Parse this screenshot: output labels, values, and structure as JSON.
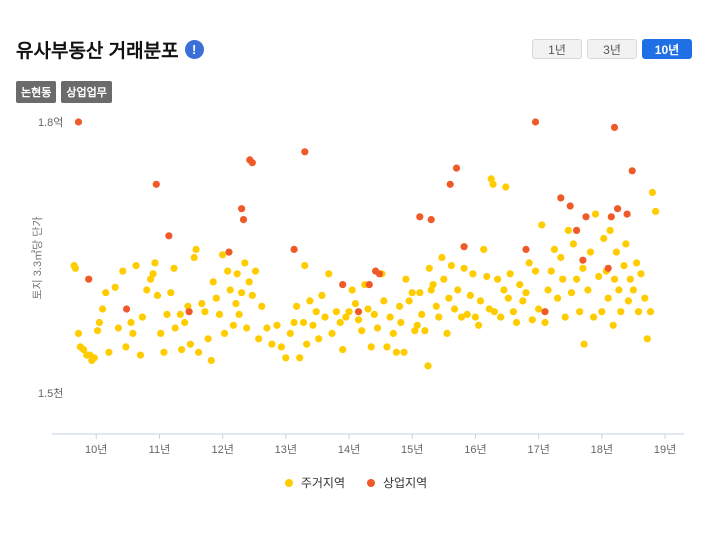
{
  "header": {
    "title": "유사부동산 거래분포",
    "info_glyph": "!",
    "range_buttons": [
      "1년",
      "3년",
      "10년"
    ],
    "active_range": "10년"
  },
  "tags": [
    "논현동",
    "상업업무"
  ],
  "colors": {
    "residential": "#ffcc00",
    "commercial": "#f05a28",
    "active": "#1f6fe5"
  },
  "chart_data": {
    "type": "scatter",
    "title": "",
    "xlabel": "",
    "ylabel": "토지 3.3㎡당 단가",
    "x_ticks": [
      10,
      11,
      12,
      13,
      14,
      15,
      16,
      17,
      18,
      19
    ],
    "x_tick_labels": [
      "10년",
      "11년",
      "12년",
      "13년",
      "14년",
      "15년",
      "16년",
      "17년",
      "18년",
      "19년"
    ],
    "xlim": [
      9.3,
      19.3
    ],
    "y_tick_labels": [
      "1.8억",
      "1.5천"
    ],
    "grid": false,
    "legend_position": "bottom",
    "series": [
      {
        "name": "주거지역",
        "color": "#ffcc00",
        "points": [
          [
            9.65,
            0.47
          ],
          [
            9.67,
            0.46
          ],
          [
            9.72,
            0.22
          ],
          [
            9.75,
            0.17
          ],
          [
            9.8,
            0.16
          ],
          [
            9.85,
            0.14
          ],
          [
            9.9,
            0.14
          ],
          [
            9.93,
            0.12
          ],
          [
            9.97,
            0.13
          ],
          [
            10.02,
            0.23
          ],
          [
            10.05,
            0.26
          ],
          [
            10.1,
            0.31
          ],
          [
            10.15,
            0.37
          ],
          [
            10.2,
            0.15
          ],
          [
            10.3,
            0.39
          ],
          [
            10.35,
            0.24
          ],
          [
            10.42,
            0.45
          ],
          [
            10.47,
            0.17
          ],
          [
            10.55,
            0.26
          ],
          [
            10.58,
            0.22
          ],
          [
            10.63,
            0.47
          ],
          [
            10.7,
            0.14
          ],
          [
            10.73,
            0.28
          ],
          [
            10.8,
            0.38
          ],
          [
            10.86,
            0.42
          ],
          [
            10.9,
            0.44
          ],
          [
            10.93,
            0.48
          ],
          [
            10.97,
            0.36
          ],
          [
            11.02,
            0.22
          ],
          [
            11.07,
            0.15
          ],
          [
            11.12,
            0.29
          ],
          [
            11.18,
            0.37
          ],
          [
            11.23,
            0.46
          ],
          [
            11.25,
            0.24
          ],
          [
            11.33,
            0.29
          ],
          [
            11.35,
            0.16
          ],
          [
            11.4,
            0.26
          ],
          [
            11.45,
            0.32
          ],
          [
            11.49,
            0.18
          ],
          [
            11.55,
            0.5
          ],
          [
            11.58,
            0.53
          ],
          [
            11.62,
            0.15
          ],
          [
            11.67,
            0.33
          ],
          [
            11.72,
            0.3
          ],
          [
            11.77,
            0.2
          ],
          [
            11.82,
            0.12
          ],
          [
            11.85,
            0.41
          ],
          [
            11.9,
            0.35
          ],
          [
            11.95,
            0.29
          ],
          [
            12.0,
            0.51
          ],
          [
            12.03,
            0.22
          ],
          [
            12.08,
            0.45
          ],
          [
            12.12,
            0.38
          ],
          [
            12.17,
            0.25
          ],
          [
            12.21,
            0.33
          ],
          [
            12.23,
            0.44
          ],
          [
            12.26,
            0.29
          ],
          [
            12.3,
            0.37
          ],
          [
            12.35,
            0.48
          ],
          [
            12.38,
            0.24
          ],
          [
            12.42,
            0.41
          ],
          [
            12.47,
            0.36
          ],
          [
            12.52,
            0.45
          ],
          [
            12.57,
            0.2
          ],
          [
            12.62,
            0.32
          ],
          [
            12.7,
            0.24
          ],
          [
            12.78,
            0.18
          ],
          [
            12.86,
            0.25
          ],
          [
            12.93,
            0.17
          ],
          [
            13.0,
            0.13
          ],
          [
            13.07,
            0.22
          ],
          [
            13.13,
            0.26
          ],
          [
            13.17,
            0.32
          ],
          [
            13.22,
            0.13
          ],
          [
            13.28,
            0.26
          ],
          [
            13.3,
            0.47
          ],
          [
            13.33,
            0.18
          ],
          [
            13.38,
            0.34
          ],
          [
            13.43,
            0.25
          ],
          [
            13.48,
            0.3
          ],
          [
            13.52,
            0.2
          ],
          [
            13.57,
            0.36
          ],
          [
            13.62,
            0.28
          ],
          [
            13.68,
            0.44
          ],
          [
            13.73,
            0.22
          ],
          [
            13.8,
            0.3
          ],
          [
            13.86,
            0.26
          ],
          [
            13.9,
            0.16
          ],
          [
            13.95,
            0.28
          ],
          [
            14.0,
            0.3
          ],
          [
            14.05,
            0.38
          ],
          [
            14.1,
            0.33
          ],
          [
            14.15,
            0.27
          ],
          [
            14.2,
            0.23
          ],
          [
            14.25,
            0.4
          ],
          [
            14.3,
            0.31
          ],
          [
            14.35,
            0.17
          ],
          [
            14.4,
            0.29
          ],
          [
            14.45,
            0.24
          ],
          [
            14.52,
            0.44
          ],
          [
            14.55,
            0.34
          ],
          [
            14.6,
            0.17
          ],
          [
            14.65,
            0.28
          ],
          [
            14.7,
            0.22
          ],
          [
            14.75,
            0.15
          ],
          [
            14.8,
            0.32
          ],
          [
            14.82,
            0.26
          ],
          [
            14.87,
            0.15
          ],
          [
            14.9,
            0.42
          ],
          [
            14.95,
            0.34
          ],
          [
            15.0,
            0.37
          ],
          [
            15.04,
            0.23
          ],
          [
            15.08,
            0.25
          ],
          [
            15.12,
            0.37
          ],
          [
            15.15,
            0.29
          ],
          [
            15.2,
            0.23
          ],
          [
            15.25,
            0.1
          ],
          [
            15.27,
            0.46
          ],
          [
            15.3,
            0.38
          ],
          [
            15.33,
            0.4
          ],
          [
            15.38,
            0.32
          ],
          [
            15.42,
            0.28
          ],
          [
            15.47,
            0.5
          ],
          [
            15.5,
            0.42
          ],
          [
            15.55,
            0.22
          ],
          [
            15.58,
            0.35
          ],
          [
            15.62,
            0.47
          ],
          [
            15.67,
            0.31
          ],
          [
            15.72,
            0.38
          ],
          [
            15.78,
            0.28
          ],
          [
            15.82,
            0.46
          ],
          [
            15.87,
            0.29
          ],
          [
            15.92,
            0.36
          ],
          [
            15.96,
            0.44
          ],
          [
            16.0,
            0.28
          ],
          [
            16.05,
            0.25
          ],
          [
            16.08,
            0.34
          ],
          [
            16.13,
            0.53
          ],
          [
            16.18,
            0.43
          ],
          [
            16.22,
            0.31
          ],
          [
            16.25,
            0.79
          ],
          [
            16.28,
            0.77
          ],
          [
            16.3,
            0.3
          ],
          [
            16.35,
            0.42
          ],
          [
            16.4,
            0.28
          ],
          [
            16.45,
            0.38
          ],
          [
            16.48,
            0.76
          ],
          [
            16.52,
            0.35
          ],
          [
            16.55,
            0.44
          ],
          [
            16.6,
            0.3
          ],
          [
            16.65,
            0.26
          ],
          [
            16.7,
            0.4
          ],
          [
            16.75,
            0.34
          ],
          [
            16.8,
            0.37
          ],
          [
            16.85,
            0.48
          ],
          [
            16.9,
            0.27
          ],
          [
            16.95,
            0.45
          ],
          [
            17.0,
            0.31
          ],
          [
            17.05,
            0.62
          ],
          [
            17.1,
            0.26
          ],
          [
            17.15,
            0.38
          ],
          [
            17.2,
            0.45
          ],
          [
            17.25,
            0.53
          ],
          [
            17.3,
            0.35
          ],
          [
            17.35,
            0.5
          ],
          [
            17.38,
            0.42
          ],
          [
            17.42,
            0.28
          ],
          [
            17.47,
            0.6
          ],
          [
            17.52,
            0.37
          ],
          [
            17.55,
            0.55
          ],
          [
            17.6,
            0.42
          ],
          [
            17.65,
            0.3
          ],
          [
            17.7,
            0.46
          ],
          [
            17.72,
            0.18
          ],
          [
            17.78,
            0.38
          ],
          [
            17.82,
            0.52
          ],
          [
            17.87,
            0.28
          ],
          [
            17.9,
            0.66
          ],
          [
            17.95,
            0.43
          ],
          [
            18.0,
            0.3
          ],
          [
            18.03,
            0.57
          ],
          [
            18.07,
            0.45
          ],
          [
            18.1,
            0.35
          ],
          [
            18.13,
            0.6
          ],
          [
            18.18,
            0.25
          ],
          [
            18.2,
            0.42
          ],
          [
            18.23,
            0.52
          ],
          [
            18.27,
            0.38
          ],
          [
            18.3,
            0.3
          ],
          [
            18.35,
            0.47
          ],
          [
            18.38,
            0.55
          ],
          [
            18.42,
            0.34
          ],
          [
            18.45,
            0.42
          ],
          [
            18.5,
            0.38
          ],
          [
            18.55,
            0.48
          ],
          [
            18.58,
            0.3
          ],
          [
            18.62,
            0.44
          ],
          [
            18.68,
            0.35
          ],
          [
            18.72,
            0.2
          ],
          [
            18.77,
            0.3
          ],
          [
            18.8,
            0.74
          ],
          [
            18.85,
            0.67
          ]
        ]
      },
      {
        "name": "상업지역",
        "color": "#f05a28",
        "points": [
          [
            9.72,
            1.0
          ],
          [
            9.88,
            0.42
          ],
          [
            10.48,
            0.31
          ],
          [
            10.95,
            0.77
          ],
          [
            11.15,
            0.58
          ],
          [
            11.47,
            0.3
          ],
          [
            12.1,
            0.52
          ],
          [
            12.3,
            0.68
          ],
          [
            12.33,
            0.64
          ],
          [
            12.43,
            0.86
          ],
          [
            12.47,
            0.85
          ],
          [
            13.13,
            0.53
          ],
          [
            13.3,
            0.89
          ],
          [
            13.9,
            0.4
          ],
          [
            14.15,
            0.3
          ],
          [
            14.32,
            0.4
          ],
          [
            14.42,
            0.45
          ],
          [
            14.48,
            0.44
          ],
          [
            15.12,
            0.65
          ],
          [
            15.3,
            0.64
          ],
          [
            15.6,
            0.77
          ],
          [
            15.7,
            0.83
          ],
          [
            15.82,
            0.54
          ],
          [
            16.8,
            0.53
          ],
          [
            16.95,
            1.0
          ],
          [
            17.1,
            0.3
          ],
          [
            17.35,
            0.72
          ],
          [
            17.5,
            0.69
          ],
          [
            17.6,
            0.6
          ],
          [
            17.7,
            0.49
          ],
          [
            17.75,
            0.65
          ],
          [
            18.1,
            0.46
          ],
          [
            18.15,
            0.65
          ],
          [
            18.25,
            0.68
          ],
          [
            18.2,
            0.98
          ],
          [
            18.4,
            0.66
          ],
          [
            18.48,
            0.82
          ]
        ]
      }
    ]
  }
}
